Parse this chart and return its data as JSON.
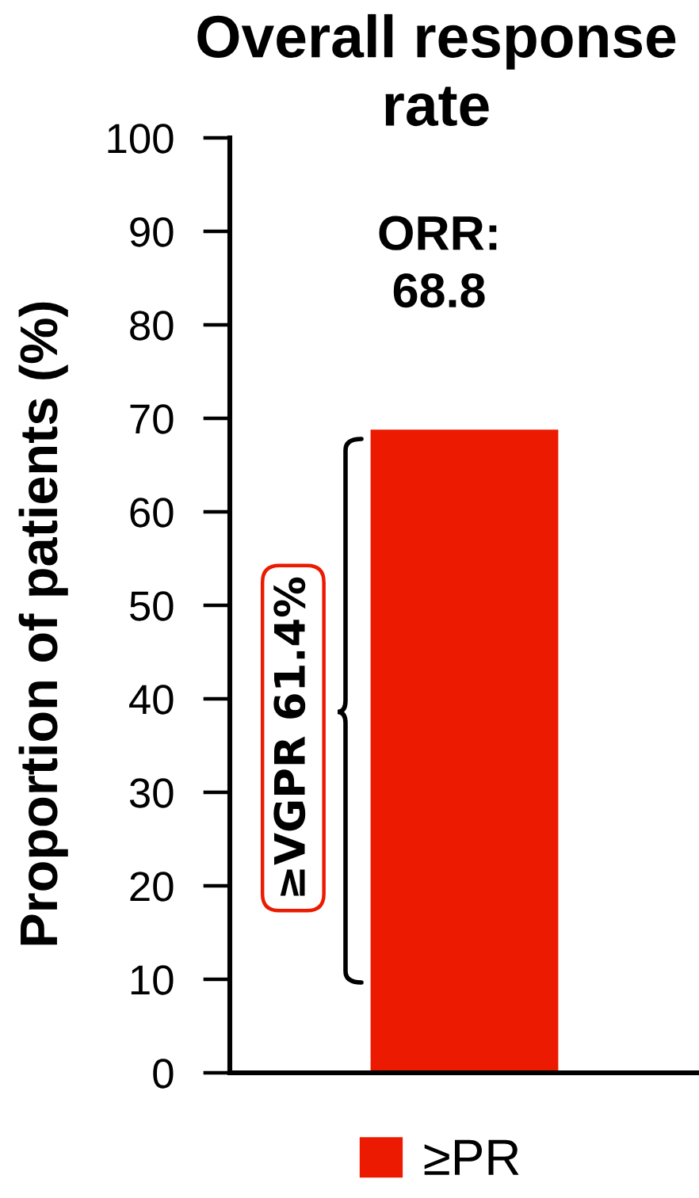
{
  "chart_data": {
    "type": "bar",
    "title": "Overall response rate",
    "ylabel": "Proportion of patients (%)",
    "categories": [
      null
    ],
    "series": [
      {
        "name": "≥PR",
        "color": "#eb1a00",
        "values": [
          68.8
        ]
      }
    ],
    "ylim": [
      0,
      100
    ],
    "yticks": [
      0,
      10,
      20,
      30,
      40,
      50,
      60,
      70,
      80,
      90,
      100
    ],
    "legend": "bottom",
    "annotations": [
      "ORR:\n68.8",
      "≥VGPR 61.4%"
    ]
  }
}
